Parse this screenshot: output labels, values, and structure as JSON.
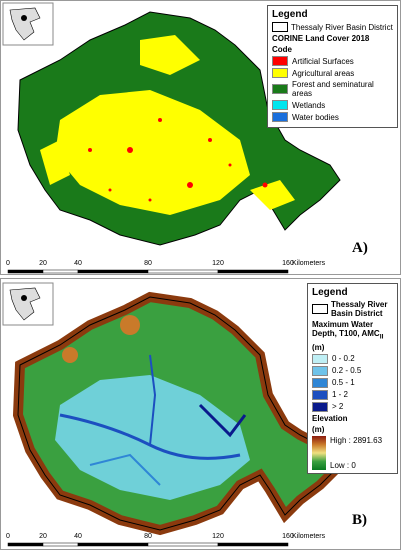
{
  "panels": [
    {
      "label": "A)",
      "legend": {
        "title": "Legend",
        "boundary": "Thessaly River Basin District",
        "subtitle": "CORINE Land Cover 2018",
        "code_heading": "Code",
        "items": [
          {
            "label": "Artificial Surfaces",
            "color": "#ff0000"
          },
          {
            "label": "Agricultural areas",
            "color": "#ffff00"
          },
          {
            "label": "Forest and seminatural areas",
            "color": "#1a7a1a"
          },
          {
            "label": "Wetlands",
            "color": "#00e5ee"
          },
          {
            "label": "Water bodies",
            "color": "#1a6fdc"
          }
        ]
      },
      "scale": {
        "ticks": [
          "0",
          "20",
          "40",
          "80",
          "120",
          "160"
        ],
        "unit": "Kilometers"
      }
    },
    {
      "label": "B)",
      "legend": {
        "title": "Legend",
        "boundary": "Thessaly River Basin District",
        "depth_heading": "Maximum Water Depth, T100, AMC",
        "depth_sub": "II",
        "depth_unit": "(m)",
        "items": [
          {
            "label": "0 - 0.2",
            "color": "#bfeff5"
          },
          {
            "label": "0.2 - 0.5",
            "color": "#6fc3ea"
          },
          {
            "label": "0.5 - 1",
            "color": "#2f86d6"
          },
          {
            "label": "1 - 2",
            "color": "#1c4fc0"
          },
          {
            "label": "> 2",
            "color": "#0a1a8c"
          }
        ],
        "elevation_heading": "Elevation",
        "elevation_unit": "(m)",
        "high": "High : 2891.63",
        "low": "Low : 0"
      },
      "scale": {
        "ticks": [
          "0",
          "20",
          "40",
          "80",
          "120",
          "160"
        ],
        "unit": "Kilometers"
      }
    }
  ]
}
